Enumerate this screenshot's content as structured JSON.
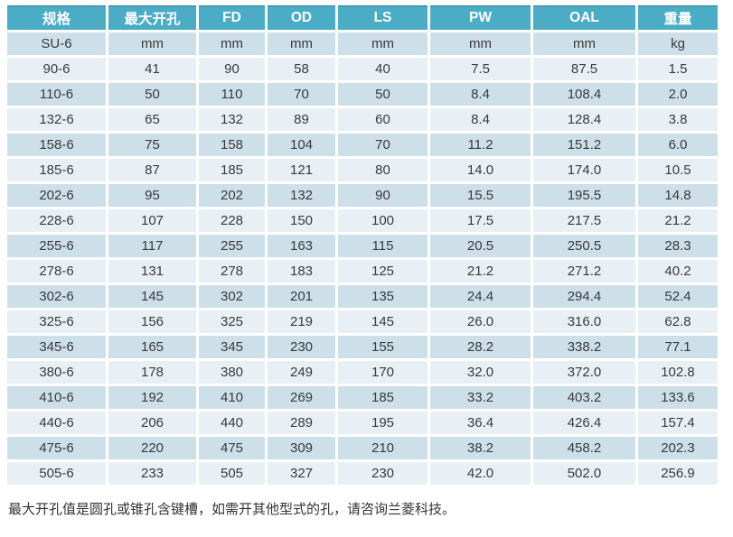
{
  "table": {
    "headers": [
      "规格",
      "最大开孔",
      "FD",
      "OD",
      "LS",
      "PW",
      "OAL",
      "重量"
    ],
    "unit_row": [
      "SU-6",
      "mm",
      "mm",
      "mm",
      "mm",
      "mm",
      "mm",
      "kg"
    ],
    "rows": [
      [
        "90-6",
        "41",
        "90",
        "58",
        "40",
        "7.5",
        "87.5",
        "1.5"
      ],
      [
        "110-6",
        "50",
        "110",
        "70",
        "50",
        "8.4",
        "108.4",
        "2.0"
      ],
      [
        "132-6",
        "65",
        "132",
        "89",
        "60",
        "8.4",
        "128.4",
        "3.8"
      ],
      [
        "158-6",
        "75",
        "158",
        "104",
        "70",
        "11.2",
        "151.2",
        "6.0"
      ],
      [
        "185-6",
        "87",
        "185",
        "121",
        "80",
        "14.0",
        "174.0",
        "10.5"
      ],
      [
        "202-6",
        "95",
        "202",
        "132",
        "90",
        "15.5",
        "195.5",
        "14.8"
      ],
      [
        "228-6",
        "107",
        "228",
        "150",
        "100",
        "17.5",
        "217.5",
        "21.2"
      ],
      [
        "255-6",
        "117",
        "255",
        "163",
        "115",
        "20.5",
        "250.5",
        "28.3"
      ],
      [
        "278-6",
        "131",
        "278",
        "183",
        "125",
        "21.2",
        "271.2",
        "40.2"
      ],
      [
        "302-6",
        "145",
        "302",
        "201",
        "135",
        "24.4",
        "294.4",
        "52.4"
      ],
      [
        "325-6",
        "156",
        "325",
        "219",
        "145",
        "26.0",
        "316.0",
        "62.8"
      ],
      [
        "345-6",
        "165",
        "345",
        "230",
        "155",
        "28.2",
        "338.2",
        "77.1"
      ],
      [
        "380-6",
        "178",
        "380",
        "249",
        "170",
        "32.0",
        "372.0",
        "102.8"
      ],
      [
        "410-6",
        "192",
        "410",
        "269",
        "185",
        "33.2",
        "403.2",
        "133.6"
      ],
      [
        "440-6",
        "206",
        "440",
        "289",
        "195",
        "36.4",
        "426.4",
        "157.4"
      ],
      [
        "475-6",
        "220",
        "475",
        "309",
        "210",
        "38.2",
        "458.2",
        "202.3"
      ],
      [
        "505-6",
        "233",
        "505",
        "327",
        "230",
        "42.0",
        "502.0",
        "256.9"
      ]
    ]
  },
  "footer": {
    "note": "最大开孔值是圆孔或锥孔含键槽，如需开其他型式的孔，请咨询兰菱科技。"
  },
  "colors": {
    "header_bg": "#4BACC6",
    "header_text": "#FFFFFF",
    "row_dark": "#CDDFE9",
    "row_light": "#E9F0F5",
    "body_text": "#3A3A3A"
  }
}
